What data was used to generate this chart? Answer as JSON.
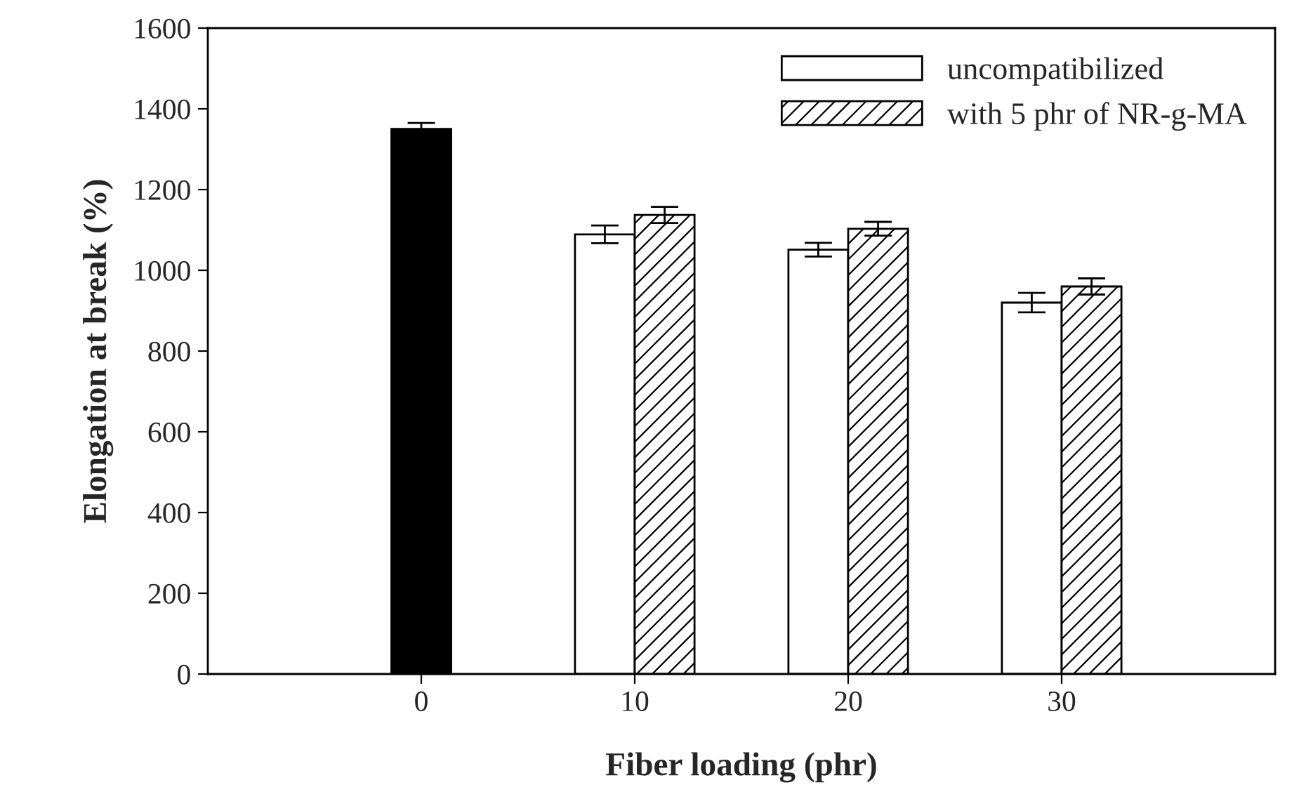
{
  "chart_data": {
    "type": "bar",
    "xlabel": "Fiber loading (phr)",
    "ylabel": "Elongation at break (%)",
    "categories": [
      "0",
      "10",
      "20",
      "30"
    ],
    "series": [
      {
        "color": "#000000",
        "values": [
          1350,
          null,
          null,
          null
        ],
        "errors": [
          15,
          null,
          null,
          null
        ]
      },
      {
        "name": "uncompatibilized",
        "color": "#ffffff",
        "values": [
          null,
          1089,
          1051,
          920
        ],
        "errors": [
          null,
          22,
          17,
          24
        ]
      },
      {
        "name": "with 5 phr of NR-g-MA",
        "color": "#000000",
        "values": [
          null,
          1137,
          1103,
          960
        ],
        "errors": [
          null,
          20,
          17,
          20
        ]
      }
    ],
    "ylim": [
      0,
      1600
    ],
    "yticks": [
      0,
      200,
      400,
      600,
      800,
      1000,
      1200,
      1400,
      1600
    ],
    "legend": "top right",
    "grid": false
  }
}
